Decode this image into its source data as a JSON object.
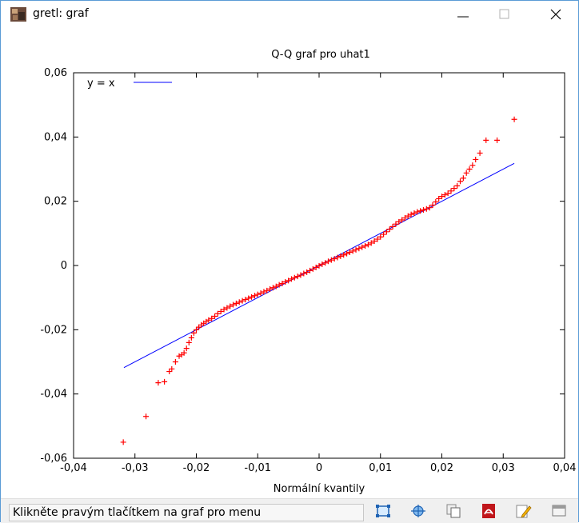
{
  "window": {
    "title": "gretl: graf",
    "minimize_label": "minimize",
    "maximize_label": "maximize",
    "close_label": "close"
  },
  "statusbar": {
    "hint": "Klikněte pravým tlačítkem na graf pro menu",
    "tools": [
      {
        "icon": "zoom-fit-icon"
      },
      {
        "icon": "move-icon"
      },
      {
        "icon": "copy-icon"
      },
      {
        "icon": "pdf-icon"
      },
      {
        "icon": "edit-icon"
      },
      {
        "icon": "close-window-icon"
      }
    ]
  },
  "chart_data": {
    "type": "scatter",
    "title": "Q-Q graf pro uhat1",
    "xlabel": "Normální kvantily",
    "ylabel": "",
    "xlim": [
      -0.04,
      0.04
    ],
    "ylim": [
      -0.06,
      0.06
    ],
    "xticks": [
      "-0,04",
      "-0,03",
      "-0,02",
      "-0,01",
      "0",
      "0,01",
      "0,02",
      "0,03",
      "0,04"
    ],
    "yticks": [
      "-0,06",
      "-0,04",
      "-0,02",
      "0",
      "0,02",
      "0,04",
      "0,06"
    ],
    "legend": {
      "label": "y = x",
      "position": "top-left"
    },
    "reference_line": {
      "name": "y = x",
      "color": "#0000ff",
      "x": [
        -0.0318,
        0.0318
      ],
      "y": [
        -0.0318,
        0.0318
      ]
    },
    "point_color": "#ff0000",
    "points": [
      [
        -0.0319,
        -0.055
      ],
      [
        -0.0282,
        -0.047
      ],
      [
        -0.0262,
        -0.0365
      ],
      [
        -0.0252,
        -0.0362
      ],
      [
        -0.0244,
        -0.033
      ],
      [
        -0.024,
        -0.0322
      ],
      [
        -0.0234,
        -0.03
      ],
      [
        -0.0228,
        -0.0282
      ],
      [
        -0.0224,
        -0.0278
      ],
      [
        -0.022,
        -0.0272
      ],
      [
        -0.0216,
        -0.0258
      ],
      [
        -0.0212,
        -0.024
      ],
      [
        -0.0208,
        -0.0225
      ],
      [
        -0.0204,
        -0.021
      ],
      [
        -0.02,
        -0.02
      ],
      [
        -0.0196,
        -0.0192
      ],
      [
        -0.0192,
        -0.0185
      ],
      [
        -0.0188,
        -0.018
      ],
      [
        -0.0184,
        -0.0175
      ],
      [
        -0.018,
        -0.017
      ],
      [
        -0.0175,
        -0.0165
      ],
      [
        -0.017,
        -0.0158
      ],
      [
        -0.0165,
        -0.015
      ],
      [
        -0.016,
        -0.0143
      ],
      [
        -0.0155,
        -0.0137
      ],
      [
        -0.015,
        -0.0132
      ],
      [
        -0.0145,
        -0.0127
      ],
      [
        -0.014,
        -0.0122
      ],
      [
        -0.0135,
        -0.0118
      ],
      [
        -0.013,
        -0.0114
      ],
      [
        -0.0125,
        -0.011
      ],
      [
        -0.012,
        -0.0106
      ],
      [
        -0.0115,
        -0.0102
      ],
      [
        -0.011,
        -0.0098
      ],
      [
        -0.0105,
        -0.0094
      ],
      [
        -0.01,
        -0.009
      ],
      [
        -0.0095,
        -0.0086
      ],
      [
        -0.009,
        -0.0082
      ],
      [
        -0.0085,
        -0.0078
      ],
      [
        -0.008,
        -0.0073
      ],
      [
        -0.0075,
        -0.0069
      ],
      [
        -0.007,
        -0.0065
      ],
      [
        -0.0065,
        -0.006
      ],
      [
        -0.006,
        -0.0056
      ],
      [
        -0.0055,
        -0.0051
      ],
      [
        -0.005,
        -0.0047
      ],
      [
        -0.0045,
        -0.0042
      ],
      [
        -0.004,
        -0.0038
      ],
      [
        -0.0035,
        -0.0034
      ],
      [
        -0.003,
        -0.003
      ],
      [
        -0.0025,
        -0.0025
      ],
      [
        -0.002,
        -0.0021
      ],
      [
        -0.0015,
        -0.0016
      ],
      [
        -0.001,
        -0.0011
      ],
      [
        -0.0005,
        -0.0006
      ],
      [
        0.0,
        -0.0001
      ],
      [
        0.0005,
        0.0004
      ],
      [
        0.001,
        0.0008
      ],
      [
        0.0015,
        0.0013
      ],
      [
        0.002,
        0.0017
      ],
      [
        0.0025,
        0.0021
      ],
      [
        0.003,
        0.0025
      ],
      [
        0.0035,
        0.0029
      ],
      [
        0.004,
        0.0033
      ],
      [
        0.0045,
        0.0037
      ],
      [
        0.005,
        0.0041
      ],
      [
        0.0055,
        0.0045
      ],
      [
        0.006,
        0.0049
      ],
      [
        0.0065,
        0.0053
      ],
      [
        0.007,
        0.0057
      ],
      [
        0.0075,
        0.0061
      ],
      [
        0.008,
        0.0065
      ],
      [
        0.0085,
        0.007
      ],
      [
        0.009,
        0.0076
      ],
      [
        0.0095,
        0.0082
      ],
      [
        0.01,
        0.0089
      ],
      [
        0.0105,
        0.0097
      ],
      [
        0.011,
        0.0105
      ],
      [
        0.0115,
        0.0113
      ],
      [
        0.012,
        0.0121
      ],
      [
        0.0125,
        0.0129
      ],
      [
        0.013,
        0.0136
      ],
      [
        0.0135,
        0.0142
      ],
      [
        0.014,
        0.0148
      ],
      [
        0.0145,
        0.0154
      ],
      [
        0.015,
        0.0159
      ],
      [
        0.0155,
        0.0163
      ],
      [
        0.016,
        0.0167
      ],
      [
        0.0165,
        0.017
      ],
      [
        0.017,
        0.0173
      ],
      [
        0.0175,
        0.0176
      ],
      [
        0.018,
        0.018
      ],
      [
        0.0185,
        0.0188
      ],
      [
        0.019,
        0.0198
      ],
      [
        0.0195,
        0.0208
      ],
      [
        0.02,
        0.0215
      ],
      [
        0.0205,
        0.022
      ],
      [
        0.021,
        0.0225
      ],
      [
        0.0215,
        0.0232
      ],
      [
        0.022,
        0.024
      ],
      [
        0.0225,
        0.0248
      ],
      [
        0.023,
        0.0262
      ],
      [
        0.0235,
        0.0272
      ],
      [
        0.024,
        0.0288
      ],
      [
        0.0245,
        0.03
      ],
      [
        0.025,
        0.0312
      ],
      [
        0.0255,
        0.033
      ],
      [
        0.0262,
        0.035
      ],
      [
        0.0272,
        0.039
      ],
      [
        0.029,
        0.039
      ],
      [
        0.0318,
        0.0455
      ]
    ]
  }
}
